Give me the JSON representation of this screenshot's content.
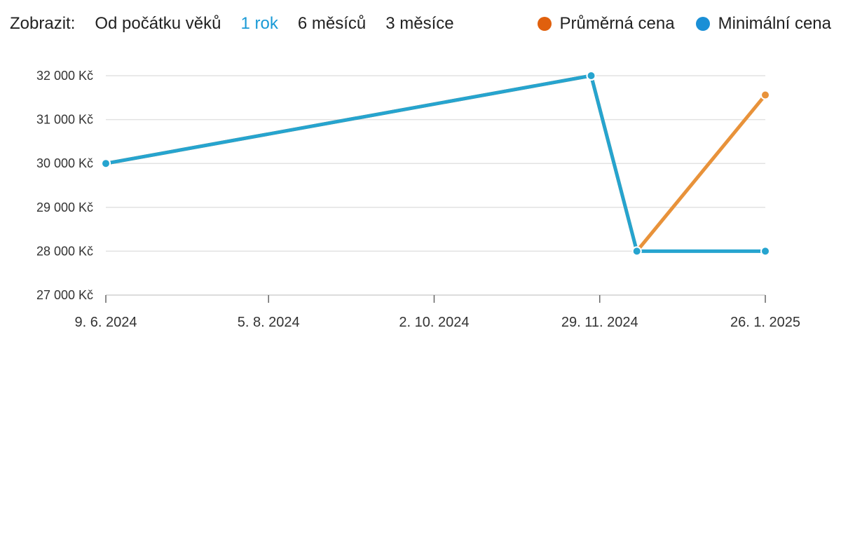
{
  "toolbar": {
    "label": "Zobrazit:",
    "ranges": [
      "Od počátku věků",
      "1 rok",
      "6 měsíců",
      "3 měsíce"
    ],
    "active_range": "1 rok"
  },
  "legend": [
    {
      "name": "Průměrná cena",
      "color": "#e0600d"
    },
    {
      "name": "Minimální cena",
      "color": "#1a8fd6"
    }
  ],
  "chart_data": {
    "type": "line",
    "x_axis_type": "date",
    "xlim": [
      "2024-06-09",
      "2025-01-26"
    ],
    "ylim": [
      27000,
      32000
    ],
    "yticks": [
      27000,
      28000,
      29000,
      30000,
      31000,
      32000
    ],
    "ytick_labels": [
      "27 000 Kč",
      "28 000 Kč",
      "29 000 Kč",
      "30 000 Kč",
      "31 000 Kč",
      "32 000 Kč"
    ],
    "xticks": [
      "2024-06-09",
      "2024-08-05",
      "2024-10-02",
      "2024-11-29",
      "2025-01-26"
    ],
    "xtick_labels": [
      "9. 6. 2024",
      "5. 8. 2024",
      "2. 10. 2024",
      "29. 11. 2024",
      "26. 1. 2025"
    ],
    "grid": true,
    "series": [
      {
        "name": "Průměrná cena",
        "color": "#e8923a",
        "x": [
          "2024-06-09",
          "2024-11-26",
          "2024-12-12",
          "2025-01-26"
        ],
        "y": [
          30000,
          32000,
          28000,
          31560
        ]
      },
      {
        "name": "Minimální cena",
        "color": "#26a4cf",
        "x": [
          "2024-06-09",
          "2024-11-26",
          "2024-12-12",
          "2025-01-26"
        ],
        "y": [
          30000,
          32000,
          28000,
          28000
        ]
      }
    ]
  }
}
